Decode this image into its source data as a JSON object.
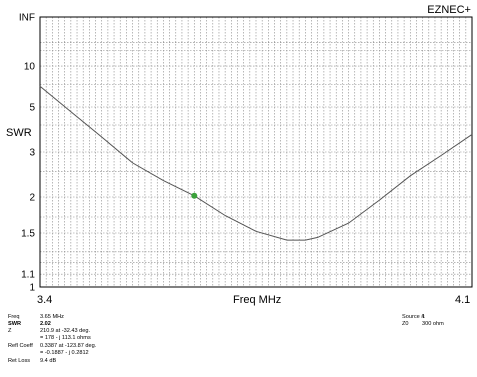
{
  "brand": "EZNEC+",
  "chart_data": {
    "type": "line",
    "xlabel": "Freq MHz",
    "ylabel": "SWR",
    "xlim": [
      3.4,
      4.1
    ],
    "x_tick_labels": [
      "3.4",
      "4.1"
    ],
    "y_tick_labels": [
      "INF",
      "10",
      "5",
      "3",
      "2",
      "1.5",
      "1.1",
      "1"
    ],
    "y_scale": "reflection",
    "grid": true,
    "series": [
      {
        "x": [
          3.4,
          3.45,
          3.5,
          3.55,
          3.6,
          3.65,
          3.7,
          3.75,
          3.8,
          3.83,
          3.85,
          3.9,
          3.95,
          4.0,
          4.05,
          4.1
        ],
        "values": [
          6.8,
          4.7,
          3.5,
          2.7,
          2.3,
          2.02,
          1.72,
          1.52,
          1.42,
          1.42,
          1.45,
          1.62,
          1.95,
          2.4,
          2.9,
          3.6
        ]
      }
    ],
    "marker": {
      "x": 3.65,
      "y": 2.02,
      "color": "#3aa13a"
    }
  },
  "readout": {
    "freq_label": "Freq",
    "freq_value": "3.65 MHz",
    "swr_label": "SWR",
    "swr_value": "2.02",
    "z_label": "Z",
    "z_value1": "210.9 at -32.43 deg.",
    "z_value2": "= 178 - j 113.1 ohms",
    "refl_label": "Refl Coeff",
    "refl_value1": "0.3387 at -123.87 deg.",
    "refl_value2": "= -0.1887 - j 0.2812",
    "retloss_label": "Ret Loss",
    "retloss_value": "9.4 dB",
    "source_label": "Source #",
    "source_value": "1",
    "z0_label": "Z0",
    "z0_value": "300 ohm"
  }
}
